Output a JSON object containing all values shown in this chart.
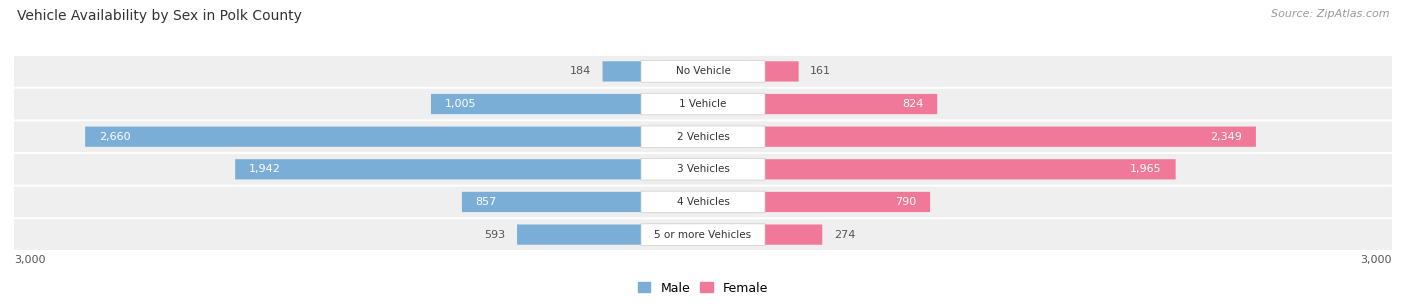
{
  "title": "Vehicle Availability by Sex in Polk County",
  "source": "Source: ZipAtlas.com",
  "categories": [
    "No Vehicle",
    "1 Vehicle",
    "2 Vehicles",
    "3 Vehicles",
    "4 Vehicles",
    "5 or more Vehicles"
  ],
  "male_values": [
    184,
    1005,
    2660,
    1942,
    857,
    593
  ],
  "female_values": [
    161,
    824,
    2349,
    1965,
    790,
    274
  ],
  "max_val": 3000,
  "male_color": "#7aaed6",
  "female_color": "#f07898",
  "male_label": "Male",
  "female_label": "Female",
  "row_bg_color": "#efefef",
  "label_color_dark": "#555555",
  "label_color_white": "#ffffff",
  "title_fontsize": 10,
  "source_fontsize": 8,
  "axis_label_fontsize": 8,
  "bar_label_fontsize": 8,
  "cat_fontsize": 7.5,
  "figsize": [
    14.06,
    3.06
  ],
  "dpi": 100
}
